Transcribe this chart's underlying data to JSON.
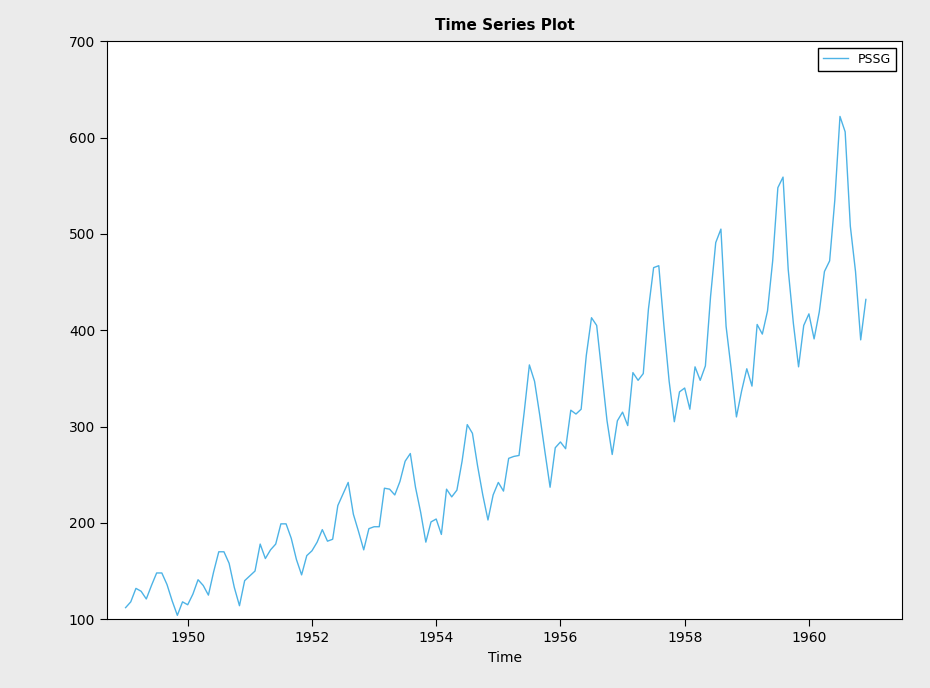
{
  "title": "Time Series Plot",
  "xlabel": "Time",
  "ylabel": "",
  "legend_label": "PSSG",
  "line_color": "#4db3e6",
  "background_color": "#ebebeb",
  "plot_bg_color": "#ffffff",
  "ylim": [
    100,
    700
  ],
  "xlim_start": 1948.7,
  "xlim_end": 1961.5,
  "xticks": [
    1950,
    1952,
    1954,
    1956,
    1958,
    1960
  ],
  "yticks": [
    100,
    200,
    300,
    400,
    500,
    600,
    700
  ],
  "values": [
    112,
    118,
    132,
    129,
    121,
    135,
    148,
    148,
    136,
    119,
    104,
    118,
    115,
    126,
    141,
    135,
    125,
    149,
    170,
    170,
    158,
    133,
    114,
    140,
    145,
    150,
    178,
    163,
    172,
    178,
    199,
    199,
    184,
    162,
    146,
    166,
    171,
    180,
    193,
    181,
    183,
    218,
    230,
    242,
    209,
    191,
    172,
    194,
    196,
    196,
    236,
    235,
    229,
    243,
    264,
    272,
    237,
    211,
    180,
    201,
    204,
    188,
    235,
    227,
    234,
    264,
    302,
    293,
    259,
    229,
    203,
    229,
    242,
    233,
    267,
    269,
    270,
    315,
    364,
    347,
    312,
    274,
    237,
    278,
    284,
    277,
    317,
    313,
    318,
    374,
    413,
    405,
    355,
    306,
    271,
    306,
    315,
    301,
    356,
    348,
    355,
    422,
    465,
    467,
    404,
    347,
    305,
    336,
    340,
    318,
    362,
    348,
    363,
    435,
    491,
    505,
    404,
    359,
    310,
    337,
    360,
    342,
    406,
    396,
    420,
    472,
    548,
    559,
    463,
    407,
    362,
    405,
    417,
    391,
    419,
    461,
    472,
    535,
    622,
    606,
    508,
    461,
    390,
    432
  ],
  "title_fontsize": 11,
  "axis_fontsize": 10,
  "tick_fontsize": 10,
  "legend_fontsize": 9,
  "linewidth": 1.0
}
